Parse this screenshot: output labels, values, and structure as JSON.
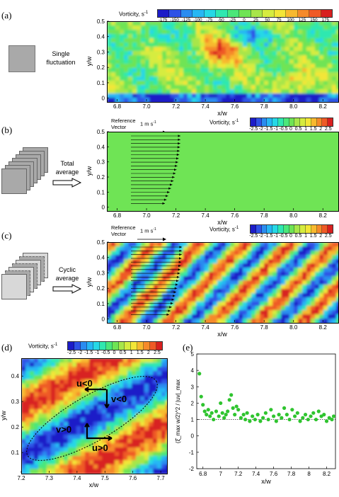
{
  "panels": {
    "a": {
      "label": "(a)",
      "side_text": [
        "Single",
        "fluctuation"
      ],
      "cbar_title": "Vorticity, s",
      "cbar_sup": "-1",
      "cbar_ticks": [
        "-175",
        "-150",
        "-125",
        "-100",
        "-75",
        "-50",
        "-25",
        "0",
        "25",
        "50",
        "75",
        "100",
        "125",
        "150",
        "175"
      ]
    },
    "b": {
      "label": "(b)",
      "side_text": [
        "Total",
        "average"
      ],
      "cbar_title": "Vorticity, s",
      "cbar_sup": "-1",
      "ref_title": [
        "Reference",
        "Vector"
      ],
      "ref_value": "1 m s",
      "ref_sup": "-1",
      "cbar_ticks": [
        "-2.5",
        "-2",
        "-1.5",
        "-1",
        "-0.5",
        "0",
        "0.5",
        "1",
        "1.5",
        "2",
        "2.5"
      ]
    },
    "c": {
      "label": "(c)",
      "side_text": [
        "Cyclic",
        "average"
      ],
      "cbar_title": "Vorticity, s",
      "cbar_sup": "-1",
      "ref_title": [
        "Reference",
        "Vector"
      ],
      "ref_value": "1 m s",
      "ref_sup": "-1",
      "cbar_ticks": [
        "-2.5",
        "-2",
        "-1.5",
        "-1",
        "-0.5",
        "0",
        "0.5",
        "1",
        "1.5",
        "2",
        "2.5"
      ]
    },
    "d": {
      "label": "(d)",
      "cbar_title": "Vorticity, s",
      "cbar_sup": "-1",
      "cbar_ticks": [
        "-2.5",
        "-2",
        "-1.5",
        "-1",
        "-0.5",
        "0",
        "0.5",
        "1",
        "1.5",
        "2",
        "2.5"
      ],
      "annotations": [
        "u<0",
        "v<0",
        "v>0",
        "u>0"
      ]
    },
    "e": {
      "label": "(e)"
    }
  },
  "axes_top": {
    "xlabel": "x/w",
    "ylabel": "y/w",
    "xticks": [
      "6.8",
      "7.0",
      "7.2",
      "7.4",
      "7.6",
      "7.8",
      "8.0",
      "8.2"
    ],
    "yticks": [
      "0",
      "0.1",
      "0.2",
      "0.3",
      "0.4",
      "0.5"
    ]
  },
  "axes_d": {
    "xlabel": "x/w",
    "ylabel": "y/w",
    "xticks": [
      "7.2",
      "7.3",
      "7.4",
      "7.5",
      "7.6",
      "7.7"
    ],
    "yticks": [
      "0.1",
      "0.2",
      "0.3",
      "0.4"
    ]
  },
  "colorbar_colors": [
    "#1c1cc8",
    "#2e52e6",
    "#2a8cf0",
    "#27b7f4",
    "#26d8e6",
    "#2fe8b0",
    "#4be77a",
    "#6fe455",
    "#a8e64a",
    "#d6ec3f",
    "#f3e637",
    "#f8b92f",
    "#f68a2a",
    "#ef5a26",
    "#d82020"
  ],
  "chart_data": {
    "type": "scatter",
    "title": "",
    "xlabel": "x/w",
    "ylabel": "(ξ̂_max w/2)^2 / |uv|_max",
    "xlim": [
      6.73,
      8.3
    ],
    "ylim": [
      -2,
      5
    ],
    "xticks": [
      "6.8",
      "7",
      "7.2",
      "7.4",
      "7.6",
      "7.8",
      "8",
      "8.2"
    ],
    "yticks": [
      "-2",
      "-1",
      "0",
      "1",
      "2",
      "3",
      "4",
      "5"
    ],
    "reference_line_y": 1,
    "x": [
      6.76,
      6.78,
      6.8,
      6.82,
      6.84,
      6.86,
      6.88,
      6.9,
      6.92,
      6.95,
      6.98,
      7.0,
      7.02,
      7.04,
      7.06,
      7.08,
      7.1,
      7.12,
      7.14,
      7.16,
      7.18,
      7.2,
      7.23,
      7.26,
      7.28,
      7.3,
      7.33,
      7.36,
      7.39,
      7.42,
      7.45,
      7.48,
      7.51,
      7.54,
      7.57,
      7.6,
      7.63,
      7.66,
      7.69,
      7.72,
      7.75,
      7.78,
      7.81,
      7.84,
      7.87,
      7.9,
      7.93,
      7.96,
      7.99,
      8.02,
      8.05,
      8.08,
      8.11,
      8.14,
      8.17,
      8.2,
      8.23,
      8.26,
      8.28
    ],
    "y": [
      3.8,
      2.4,
      1.9,
      1.5,
      1.3,
      1.6,
      1.2,
      1.4,
      1.0,
      1.5,
      1.2,
      2.0,
      1.4,
      1.1,
      1.3,
      1.5,
      2.2,
      2.5,
      1.7,
      1.3,
      1.8,
      1.6,
      1.1,
      1.3,
      1.0,
      1.4,
      0.9,
      1.2,
      1.0,
      1.3,
      0.9,
      1.1,
      1.4,
      1.0,
      1.6,
      1.2,
      0.9,
      1.3,
      1.1,
      1.7,
      1.3,
      1.0,
      1.6,
      1.2,
      1.4,
      0.9,
      1.1,
      1.3,
      1.0,
      1.2,
      1.4,
      1.0,
      1.5,
      1.2,
      1.3,
      0.9,
      1.1,
      1.0,
      1.2
    ]
  }
}
